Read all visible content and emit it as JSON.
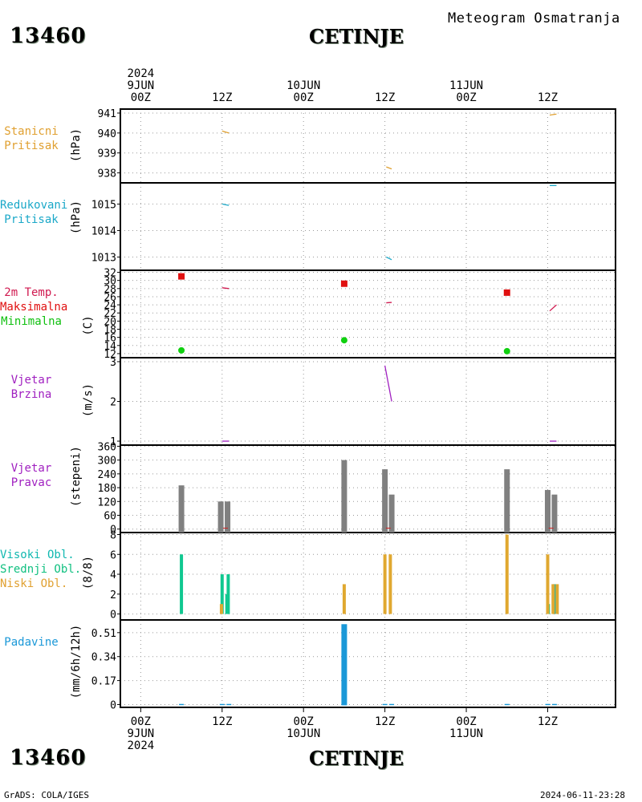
{
  "header": {
    "station_id": "13460",
    "station_name": "CETINJE",
    "subtitle": "Meteogram Osmatranja"
  },
  "footer": {
    "station_id": "13460",
    "station_name": "CETINJE",
    "left_note": "GrADS: COLA/IGES",
    "timestamp": "2024-06-11-23:28"
  },
  "time_axis": {
    "top_labels": [
      {
        "hour": 0,
        "lines": [
          "2024",
          "9JUN",
          "00Z"
        ]
      },
      {
        "hour": 12,
        "lines": [
          "12Z"
        ]
      },
      {
        "hour": 24,
        "lines": [
          "10JUN",
          "00Z"
        ]
      },
      {
        "hour": 36,
        "lines": [
          "12Z"
        ]
      },
      {
        "hour": 48,
        "lines": [
          "11JUN",
          "00Z"
        ]
      },
      {
        "hour": 60,
        "lines": [
          "12Z"
        ]
      }
    ],
    "bottom_labels": [
      {
        "hour": 0,
        "lines": [
          "00Z",
          "9JUN",
          "2024"
        ]
      },
      {
        "hour": 12,
        "lines": [
          "12Z"
        ]
      },
      {
        "hour": 24,
        "lines": [
          "00Z",
          "10JUN"
        ]
      },
      {
        "hour": 36,
        "lines": [
          "12Z"
        ]
      },
      {
        "hour": 48,
        "lines": [
          "00Z",
          "11JUN"
        ]
      },
      {
        "hour": 60,
        "lines": [
          "12Z"
        ]
      }
    ]
  },
  "panels": [
    {
      "key": "station_pressure",
      "labels": [
        {
          "text": "Stanicni",
          "color": "#e0a030"
        },
        {
          "text": "Pritisak",
          "color": "#e0a030"
        }
      ],
      "unit": "(hPa)",
      "ticks": [
        "941",
        "940",
        "939",
        "938"
      ]
    },
    {
      "key": "reduced_pressure",
      "labels": [
        {
          "text": "Redukovani",
          "color": "#1aa8c8"
        },
        {
          "text": "Pritisak",
          "color": "#1aa8c8"
        }
      ],
      "unit": "(hPa)",
      "ticks": [
        "1015",
        "1014",
        "1013"
      ]
    },
    {
      "key": "temperature",
      "labels": [
        {
          "text": "2m Temp.",
          "color": "#d01a50"
        },
        {
          "text": "Maksimalna",
          "color": "#e01010"
        },
        {
          "text": "Minimalna",
          "color": "#10c010"
        }
      ],
      "unit": "(C)",
      "ticks": [
        "32",
        "30",
        "28",
        "26",
        "24",
        "22",
        "20",
        "18",
        "16",
        "14",
        "12"
      ]
    },
    {
      "key": "wind_speed",
      "labels": [
        {
          "text": "Vjetar",
          "color": "#a020c0"
        },
        {
          "text": "Brzina",
          "color": "#a020c0"
        }
      ],
      "unit": "(m/s)",
      "ticks": [
        "3",
        "2",
        "1"
      ]
    },
    {
      "key": "wind_dir",
      "labels": [
        {
          "text": "Vjetar",
          "color": "#a020c0"
        },
        {
          "text": "Pravac",
          "color": "#a020c0"
        }
      ],
      "unit": "(stepeni)",
      "ticks": [
        "360",
        "300",
        "240",
        "180",
        "120",
        "60",
        "0"
      ]
    },
    {
      "key": "clouds",
      "labels": [
        {
          "text": "Visoki Obl.",
          "color": "#10b8b0"
        },
        {
          "text": "Srednji Obl.",
          "color": "#10c080"
        },
        {
          "text": "Niski Obl.",
          "color": "#e0a030"
        }
      ],
      "unit": "(8/8)",
      "ticks": [
        "8",
        "6",
        "4",
        "2",
        "0"
      ]
    },
    {
      "key": "precip",
      "labels": [
        {
          "text": "Padavine",
          "color": "#1a98d8"
        }
      ],
      "unit": "(mm/6h/12h)",
      "ticks": [
        "0.51",
        "0.34",
        "0.17",
        "0"
      ]
    }
  ],
  "chart_data": {
    "type": "meteogram",
    "x_unit": "hours since 2024-06-09 00Z",
    "xlim": [
      -3,
      70
    ],
    "station_pressure": {
      "ylim": [
        937.5,
        941.2
      ],
      "color": "#e0a030",
      "segments": [
        [
          [
            12.0,
            940.1
          ],
          [
            13.0,
            940.0
          ]
        ],
        [
          [
            36.2,
            938.3
          ],
          [
            37.0,
            938.2
          ]
        ],
        [
          [
            60.3,
            940.9
          ],
          [
            61.3,
            940.95
          ]
        ]
      ]
    },
    "reduced_pressure": {
      "ylim": [
        1012.5,
        1015.8
      ],
      "color": "#1aa8c8",
      "segments": [
        [
          [
            12.0,
            1015.0
          ],
          [
            13.0,
            1014.95
          ]
        ],
        [
          [
            36.2,
            1013.0
          ],
          [
            37.0,
            1012.9
          ]
        ],
        [
          [
            60.3,
            1015.7
          ],
          [
            61.3,
            1015.7
          ]
        ]
      ]
    },
    "temperature": {
      "ylim": [
        11,
        32.5
      ],
      "temp_color": "#d01a50",
      "temp_segments": [
        [
          [
            12.0,
            28.2
          ],
          [
            13.0,
            28.0
          ]
        ],
        [
          [
            36.2,
            24.5
          ],
          [
            37.0,
            24.6
          ]
        ],
        [
          [
            60.3,
            22.5
          ],
          [
            61.3,
            24.0
          ]
        ]
      ],
      "max_color": "#e01010",
      "max": [
        {
          "x": 6,
          "y": 31.0
        },
        {
          "x": 30,
          "y": 29.2
        },
        {
          "x": 54,
          "y": 27.0
        }
      ],
      "min_color": "#10d010",
      "min": [
        {
          "x": 6,
          "y": 12.8
        },
        {
          "x": 30,
          "y": 15.3
        },
        {
          "x": 54,
          "y": 12.6
        }
      ]
    },
    "wind_speed": {
      "ylim": [
        0.9,
        3.1
      ],
      "color": "#a020c0",
      "segments": [
        [
          [
            12.0,
            1.0
          ],
          [
            13.0,
            1.0
          ]
        ],
        [
          [
            36.0,
            2.9
          ],
          [
            37.0,
            2.0
          ]
        ],
        [
          [
            60.3,
            1.0
          ],
          [
            61.3,
            1.0
          ]
        ]
      ]
    },
    "wind_dir": {
      "ylim": [
        -15,
        365
      ],
      "color": "#808080",
      "bars": [
        {
          "x": 6,
          "y": 190
        },
        {
          "x": 11.8,
          "y": 120
        },
        {
          "x": 12.8,
          "y": 120
        },
        {
          "x": 30,
          "y": 300
        },
        {
          "x": 36,
          "y": 260
        },
        {
          "x": 37,
          "y": 150
        },
        {
          "x": 54,
          "y": 260
        },
        {
          "x": 60,
          "y": 170
        },
        {
          "x": 61,
          "y": 150
        }
      ]
    },
    "clouds": {
      "ylim": [
        -0.6,
        8.2
      ],
      "series": [
        {
          "name": "Visoki Obl.",
          "color": "#10b8b0",
          "bars": [
            {
              "x": 61.0,
              "y": 3
            }
          ]
        },
        {
          "name": "Srednji Obl.",
          "color": "#10c890",
          "bars": [
            {
              "x": 6,
              "y": 6
            },
            {
              "x": 12,
              "y": 4
            },
            {
              "x": 12.9,
              "y": 4
            },
            {
              "x": 12.7,
              "y": 2
            },
            {
              "x": 60.1,
              "y": 1
            }
          ]
        },
        {
          "name": "Niski Obl.",
          "color": "#e0a830",
          "bars": [
            {
              "x": 11.9,
              "y": 1
            },
            {
              "x": 30,
              "y": 3
            },
            {
              "x": 36,
              "y": 6
            },
            {
              "x": 36.8,
              "y": 6
            },
            {
              "x": 54,
              "y": 8
            },
            {
              "x": 60.0,
              "y": 6
            },
            {
              "x": 60.8,
              "y": 3
            },
            {
              "x": 61.4,
              "y": 3
            }
          ]
        }
      ]
    },
    "precip": {
      "ylim": [
        -0.02,
        0.6
      ],
      "color": "#1a98d8",
      "bars": [
        {
          "x": 30,
          "y": 0.57
        }
      ],
      "trace_x": [
        6,
        12,
        13,
        36,
        37,
        54,
        60,
        61
      ]
    }
  }
}
